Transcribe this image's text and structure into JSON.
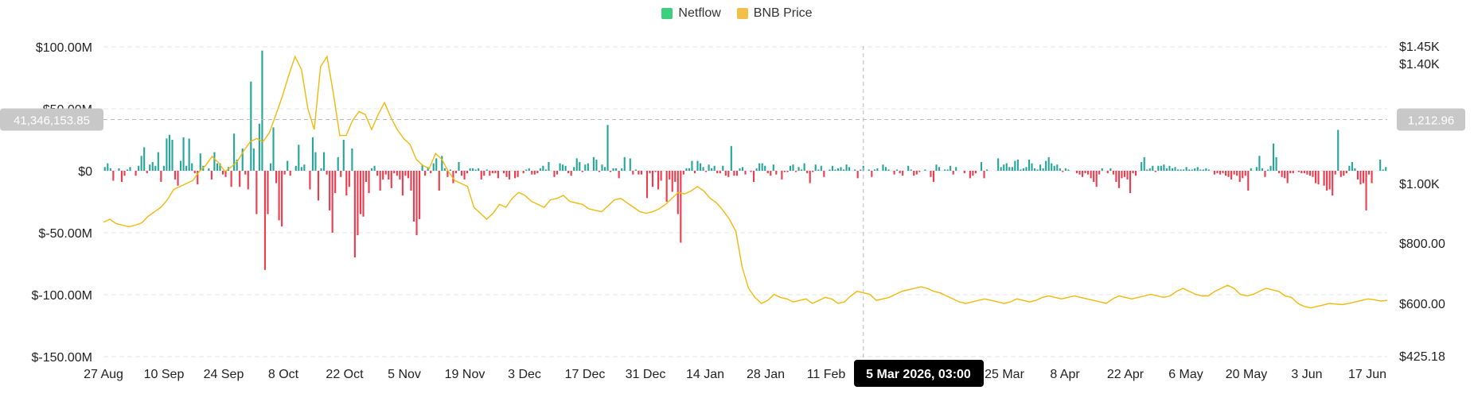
{
  "legend": {
    "netflow": "Netflow",
    "price": "BNB Price"
  },
  "colors": {
    "positive": "#26a69a",
    "negative": "#ef3b4e",
    "price": "#f0b90b",
    "legend_netflow": "#3bcf7e",
    "legend_price": "#f0c04a",
    "grid": "#e5e5e5",
    "tooltip_bg": "#000000"
  },
  "crosshair": {
    "date_label": "5 Mar 2026, 03:00",
    "netflow_value": "41,346,153.85",
    "price_value": "1,212.96"
  },
  "chart_data": {
    "type": "bar",
    "x_ticks": [
      "27 Aug",
      "10 Sep",
      "24 Sep",
      "8 Oct",
      "22 Oct",
      "5 Nov",
      "19 Nov",
      "3 Dec",
      "17 Dec",
      "31 Dec",
      "14 Jan",
      "28 Jan",
      "11 Feb",
      "25 Mar",
      "8 Apr",
      "22 Apr",
      "6 May",
      "20 May",
      "3 Jun",
      "17 Jun"
    ],
    "left_axis": {
      "ticks": [
        "$100.00M",
        "$50.00M",
        "$0",
        "$-50.00M",
        "$-100.00M",
        "$-150.00M"
      ],
      "values": [
        100,
        50,
        0,
        -50,
        -100,
        -150
      ],
      "ylim": [
        -150,
        100
      ]
    },
    "right_axis": {
      "ticks": [
        "$1.45K",
        "$1.40K",
        "$1.00K",
        "$800.00",
        "$600.00",
        "$425.18"
      ],
      "values": [
        1450,
        1400,
        1000,
        800,
        600,
        425.18
      ],
      "ylim": [
        425.18,
        1450
      ]
    },
    "series": [
      {
        "name": "Netflow",
        "type": "bar",
        "unit": "$M",
        "values": [
          3,
          6,
          2,
          -8,
          0,
          2,
          -9,
          -4,
          1,
          3,
          0,
          -4,
          4,
          12,
          19,
          -2,
          5,
          7,
          4,
          15,
          -9,
          4,
          26,
          29,
          25,
          -7,
          -12,
          8,
          27,
          4,
          26,
          6,
          -2,
          -11,
          14,
          4,
          0,
          2,
          -7,
          15,
          6,
          6,
          -3,
          -5,
          3,
          -13,
          30,
          9,
          -13,
          18,
          -3,
          -15,
          72,
          18,
          -35,
          38,
          97,
          -80,
          -35,
          6,
          35,
          -10,
          -40,
          -45,
          -3,
          8,
          -4,
          0,
          4,
          21,
          3,
          5,
          0,
          -15,
          27,
          15,
          -24,
          2,
          15,
          -3,
          -32,
          -50,
          -18,
          11,
          -5,
          25,
          -20,
          -13,
          18,
          -70,
          -52,
          -35,
          -37,
          -9,
          -18,
          2,
          4,
          -4,
          -16,
          -7,
          -3,
          -7,
          -14,
          -2,
          -4,
          -7,
          -20,
          -4,
          -6,
          -16,
          -41,
          -52,
          -39,
          5,
          -4,
          3,
          -2,
          6,
          10,
          -16,
          12,
          2,
          -5,
          1,
          -10,
          -2,
          7,
          -4,
          -7,
          -2,
          2,
          2,
          1,
          2,
          -7,
          -4,
          1,
          -4,
          -2,
          -2,
          -6,
          0,
          -2,
          -5,
          -7,
          0,
          -6,
          -5,
          0,
          -2,
          1,
          2,
          -3,
          -3,
          -2,
          2,
          4,
          1,
          7,
          0,
          -5,
          -3,
          6,
          5,
          4,
          -2,
          -4,
          3,
          10,
          7,
          -1,
          5,
          6,
          0,
          11,
          9,
          -1,
          5,
          3,
          37,
          -1,
          2,
          2,
          -6,
          2,
          11,
          0,
          10,
          -3,
          1,
          -3,
          -3,
          0,
          -22,
          -2,
          -13,
          -1,
          -15,
          -8,
          0,
          -25,
          -7,
          -17,
          -9,
          -35,
          -58,
          -3,
          2,
          2,
          8,
          -2,
          8,
          6,
          3,
          -1,
          5,
          2,
          4,
          -2,
          -2,
          4,
          -4,
          -5,
          20,
          -4,
          -4,
          2,
          3,
          -3,
          0,
          -1,
          -9,
          2,
          6,
          6,
          4,
          -2,
          -4,
          5,
          -3,
          0,
          -7,
          -1,
          -1,
          4,
          5,
          -1,
          3,
          1,
          6,
          -2,
          -10,
          -1,
          5,
          1,
          4,
          -5,
          0,
          1,
          4,
          1,
          2,
          3,
          1,
          5,
          3,
          0,
          1,
          -6,
          1,
          4,
          0,
          1,
          -5,
          1,
          2,
          0,
          5,
          3,
          1,
          0,
          -3,
          1,
          -2,
          -4,
          0,
          4,
          1,
          -4,
          -3,
          -1,
          0,
          1,
          0,
          -5,
          -9,
          5,
          3,
          0,
          1,
          1,
          4,
          -3,
          3,
          0,
          0,
          -2,
          0,
          -6,
          -4,
          -2,
          0,
          7,
          -6,
          1,
          0,
          0,
          0,
          10,
          3,
          5,
          6,
          3,
          3,
          8,
          9,
          1,
          2,
          3,
          9,
          6,
          2,
          1,
          5,
          2,
          8,
          11,
          6,
          4,
          5,
          2,
          -1,
          2,
          1,
          0,
          0,
          -2,
          -3,
          -5,
          -2,
          -3,
          -6,
          -9,
          -13,
          -3,
          2,
          0,
          -2,
          2,
          -3,
          -9,
          -14,
          -6,
          -5,
          -7,
          -18,
          -2,
          -4,
          0,
          7,
          11,
          1,
          2,
          4,
          -1,
          4,
          4,
          5,
          2,
          4,
          2,
          3,
          1,
          1,
          1,
          3,
          1,
          1,
          2,
          3,
          1,
          1,
          2,
          1,
          0,
          -3,
          -2,
          -3,
          -2,
          -4,
          -5,
          -7,
          -3,
          -4,
          -9,
          -6,
          -4,
          -16,
          2,
          0,
          3,
          12,
          2,
          -5,
          1,
          4,
          22,
          11,
          -2,
          -5,
          -6,
          -10,
          -2,
          -2,
          0,
          -1,
          -2,
          -2,
          -3,
          -4,
          -5,
          -10,
          -11,
          0,
          -12,
          -16,
          -15,
          -20,
          -3,
          33,
          -5,
          -4,
          -2,
          4,
          7,
          2,
          -7,
          -11,
          -10,
          -32,
          -3,
          -10,
          0,
          0,
          9,
          1,
          3
        ]
      },
      {
        "name": "BNB Price",
        "type": "line",
        "unit": "$",
        "values": [
          870,
          880,
          865,
          860,
          855,
          860,
          868,
          890,
          905,
          920,
          945,
          980,
          990,
          1000,
          1010,
          1040,
          1060,
          1090,
          1070,
          1040,
          1055,
          1075,
          1110,
          1140,
          1150,
          1140,
          1170,
          1230,
          1290,
          1360,
          1420,
          1380,
          1250,
          1180,
          1390,
          1420,
          1300,
          1160,
          1160,
          1210,
          1240,
          1230,
          1180,
          1230,
          1270,
          1220,
          1180,
          1150,
          1130,
          1080,
          1060,
          1050,
          1100,
          1080,
          1040,
          1010,
          1000,
          990,
          920,
          900,
          880,
          900,
          930,
          920,
          950,
          970,
          960,
          940,
          930,
          920,
          945,
          950,
          960,
          940,
          935,
          930,
          915,
          910,
          905,
          925,
          945,
          950,
          935,
          920,
          905,
          900,
          905,
          915,
          930,
          950,
          970,
          965,
          975,
          990,
          975,
          950,
          935,
          910,
          880,
          840,
          720,
          650,
          620,
          600,
          610,
          630,
          620,
          615,
          605,
          610,
          615,
          600,
          610,
          620,
          615,
          600,
          605,
          625,
          640,
          635,
          630,
          610,
          615,
          620,
          630,
          640,
          645,
          650,
          655,
          650,
          640,
          635,
          625,
          615,
          605,
          600,
          605,
          610,
          615,
          610,
          605,
          600,
          605,
          615,
          610,
          605,
          610,
          620,
          625,
          620,
          615,
          620,
          625,
          620,
          615,
          610,
          605,
          600,
          615,
          625,
          620,
          615,
          620,
          625,
          630,
          625,
          620,
          625,
          640,
          650,
          640,
          630,
          625,
          625,
          640,
          650,
          660,
          650,
          630,
          625,
          630,
          640,
          650,
          645,
          640,
          625,
          620,
          600,
          590,
          585,
          590,
          595,
          600,
          598,
          596,
          600,
          605,
          610,
          615,
          612,
          608,
          610
        ]
      }
    ],
    "highlight_index": 270,
    "crosshair_netflow": 41346153.85,
    "crosshair_price": 1212.96
  }
}
